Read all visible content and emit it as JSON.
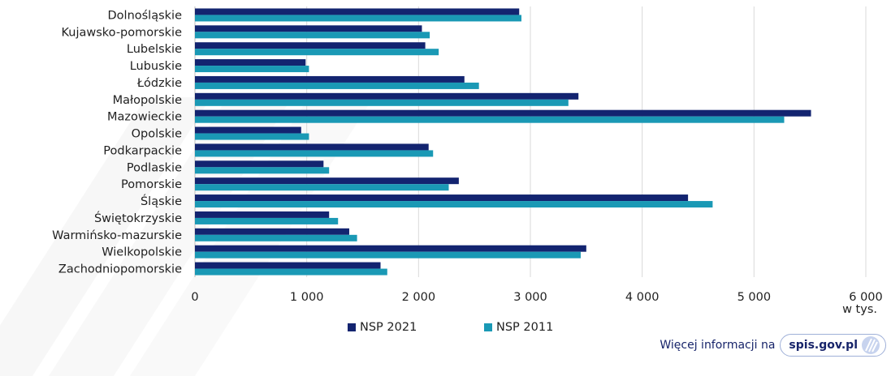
{
  "chart_data": {
    "type": "bar",
    "orientation": "horizontal",
    "categories": [
      "Dolnośląskie",
      "Kujawsko-pomorskie",
      "Lubelskie",
      "Lubuskie",
      "Łódzkie",
      "Małopolskie",
      "Mazowieckie",
      "Opolskie",
      "Podkarpackie",
      "Podlaskie",
      "Pomorskie",
      "Śląskie",
      "Świętokrzyskie",
      "Warmińsko-mazurskie",
      "Wielkopolskie",
      "Zachodniopomorskie"
    ],
    "series": [
      {
        "name": "NSP 2021",
        "color": "#132470",
        "values": [
          2900,
          2030,
          2060,
          990,
          2410,
          3430,
          5510,
          950,
          2090,
          1150,
          2360,
          4410,
          1200,
          1380,
          3500,
          1660
        ]
      },
      {
        "name": "NSP 2011",
        "color": "#1a99b5",
        "values": [
          2920,
          2100,
          2180,
          1020,
          2540,
          3340,
          5270,
          1020,
          2130,
          1200,
          2270,
          4630,
          1280,
          1450,
          3450,
          1720
        ]
      }
    ],
    "xlim": [
      0,
      6000
    ],
    "x_ticks": [
      0,
      1000,
      2000,
      3000,
      4000,
      5000,
      6000
    ],
    "x_tick_labels": [
      "0",
      "1 000",
      "2 000",
      "3 000",
      "4 000",
      "5 000",
      "6 000"
    ],
    "unit_label": "w tys.",
    "legend_position": "bottom",
    "grid": "vertical"
  },
  "footer": {
    "text": "Więcej informacji na",
    "link": "spis.gov.pl"
  }
}
